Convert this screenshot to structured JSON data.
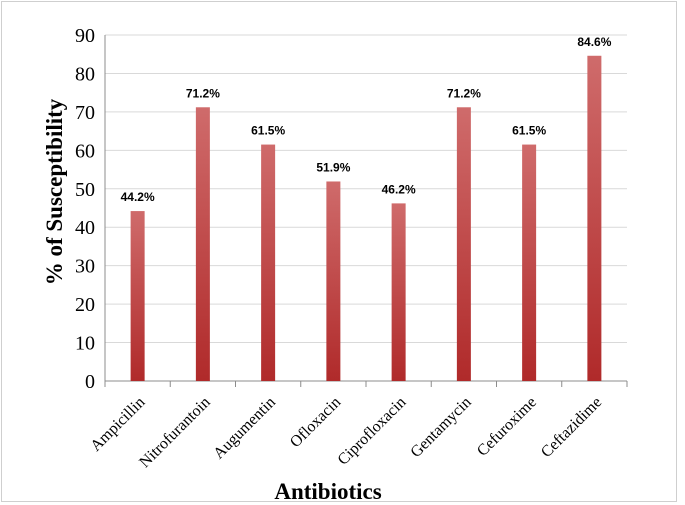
{
  "chart_data": {
    "type": "bar",
    "title": "",
    "xlabel": "Antibiotics",
    "ylabel": "% of  Susceptibility",
    "categories": [
      "Ampicillin",
      "Nitrofurantoin",
      "Augumentin",
      "Ofloxacin",
      "Ciprofloxacin",
      "Gentamycin",
      "Cefuroxime",
      "Ceftazidime"
    ],
    "values": [
      44.2,
      71.2,
      61.5,
      51.9,
      46.2,
      71.2,
      61.5,
      84.6
    ],
    "data_labels": [
      "44.2%",
      "71.2%",
      "61.5%",
      "51.9%",
      "46.2%",
      "71.2%",
      "61.5%",
      "84.6%"
    ],
    "ylim": [
      0,
      90
    ],
    "yticks": [
      0,
      10,
      20,
      30,
      40,
      50,
      60,
      70,
      80,
      90
    ],
    "grid": true,
    "legend": "none",
    "colors": {
      "bar_top": "#cf6b6b",
      "bar_bottom": "#b02a2a",
      "grid": "#d9d9d9",
      "axis": "#8c8c8c"
    }
  }
}
